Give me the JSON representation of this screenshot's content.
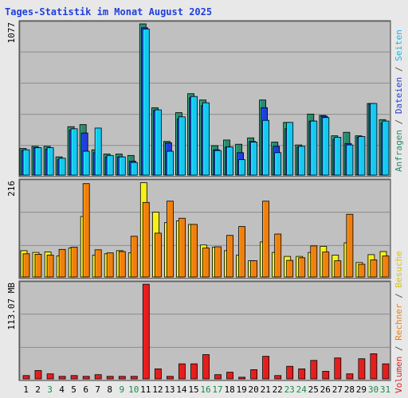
{
  "chart_data": [
    {
      "type": "bar",
      "title": "Tages-Statistik im Monat August 2025",
      "ymax_label": "1077",
      "ylim": [
        0,
        1077
      ],
      "categories": [
        "1",
        "2",
        "3",
        "4",
        "5",
        "6",
        "7",
        "8",
        "9",
        "10",
        "11",
        "12",
        "13",
        "14",
        "15",
        "16",
        "17",
        "18",
        "19",
        "20",
        "21",
        "22",
        "23",
        "24",
        "25",
        "26",
        "27",
        "28",
        "29",
        "30",
        "31"
      ],
      "weekend_days": [
        "3",
        "9",
        "10",
        "16",
        "17",
        "23",
        "24",
        "30",
        "31"
      ],
      "series": [
        {
          "name": "Anfragen",
          "color": "#2a8a6e",
          "values": [
            190,
            205,
            205,
            130,
            345,
            360,
            180,
            150,
            150,
            140,
            1077,
            480,
            240,
            445,
            580,
            535,
            210,
            250,
            220,
            265,
            535,
            235,
            375,
            215,
            435,
            425,
            280,
            305,
            280,
            510,
            395
          ]
        },
        {
          "name": "Dateien",
          "color": "#1f3fdd",
          "values": [
            175,
            195,
            185,
            110,
            320,
            300,
            160,
            130,
            130,
            100,
            1050,
            460,
            230,
            400,
            550,
            495,
            180,
            200,
            160,
            240,
            480,
            205,
            330,
            200,
            385,
            420,
            255,
            225,
            270,
            510,
            370
          ]
        },
        {
          "name": "Seiten",
          "color": "#16c8f0",
          "values": [
            180,
            195,
            195,
            120,
            330,
            170,
            335,
            140,
            130,
            90,
            1040,
            465,
            170,
            415,
            560,
            515,
            175,
            200,
            110,
            235,
            390,
            160,
            375,
            205,
            385,
            410,
            270,
            215,
            275,
            510,
            385
          ]
        }
      ]
    },
    {
      "type": "bar",
      "ymax_label": "216",
      "ylim": [
        0,
        216
      ],
      "categories": [
        "1",
        "2",
        "3",
        "4",
        "5",
        "6",
        "7",
        "8",
        "9",
        "10",
        "11",
        "12",
        "13",
        "14",
        "15",
        "16",
        "17",
        "18",
        "19",
        "20",
        "21",
        "22",
        "23",
        "24",
        "25",
        "26",
        "27",
        "28",
        "29",
        "30",
        "31"
      ],
      "series": [
        {
          "name": "Besuche",
          "color": "#f5f015",
          "values": [
            60,
            56,
            57,
            48,
            66,
            138,
            50,
            53,
            60,
            55,
            215,
            148,
            124,
            128,
            120,
            73,
            68,
            60,
            50,
            37,
            80,
            56,
            47,
            47,
            56,
            70,
            50,
            78,
            33,
            51,
            58
          ]
        },
        {
          "name": "Rechner",
          "color": "#f07f0f",
          "values": [
            53,
            52,
            50,
            63,
            68,
            213,
            62,
            55,
            58,
            93,
            170,
            100,
            173,
            134,
            120,
            66,
            69,
            95,
            115,
            37,
            173,
            98,
            38,
            44,
            71,
            57,
            37,
            143,
            29,
            39,
            48
          ]
        }
      ]
    },
    {
      "type": "bar",
      "ymax_label": "113.07 MB",
      "ylim": [
        0,
        113.07
      ],
      "categories": [
        "1",
        "2",
        "3",
        "4",
        "5",
        "6",
        "7",
        "8",
        "9",
        "10",
        "11",
        "12",
        "13",
        "14",
        "15",
        "16",
        "17",
        "18",
        "19",
        "20",
        "21",
        "22",
        "23",
        "24",
        "25",
        "26",
        "27",
        "28",
        "29",
        "30",
        "31"
      ],
      "series": [
        {
          "name": "Volumen",
          "color": "#e51d1d",
          "values": [
            4,
            10,
            6,
            3,
            4,
            3,
            5,
            3,
            3,
            3,
            113,
            12,
            3,
            18,
            18,
            29,
            5,
            8,
            2,
            11,
            27,
            4,
            15,
            12,
            22,
            9,
            25,
            6,
            24,
            30,
            18
          ]
        }
      ]
    }
  ],
  "side_labels": {
    "top": [
      {
        "text": "Anfragen",
        "color": "#2a8a6e"
      },
      {
        "text": " / ",
        "color": "#555555"
      },
      {
        "text": "Dateien",
        "color": "#1f3fdd"
      },
      {
        "text": " / ",
        "color": "#555555"
      },
      {
        "text": "Seiten",
        "color": "#16b8e0"
      }
    ],
    "bottom": [
      {
        "text": "Volumen",
        "color": "#e51d1d"
      },
      {
        "text": " / ",
        "color": "#555555"
      },
      {
        "text": "Rechner",
        "color": "#f07f0f"
      },
      {
        "text": " / ",
        "color": "#555555"
      },
      {
        "text": "Besuche",
        "color": "#d8c400"
      }
    ]
  },
  "colors": {
    "background": "#e8e8e8",
    "plot": "#c0c0c0",
    "title": "#1f3fdd",
    "weekday_label": "#000000",
    "weekend_label": "#1a8a4a"
  }
}
